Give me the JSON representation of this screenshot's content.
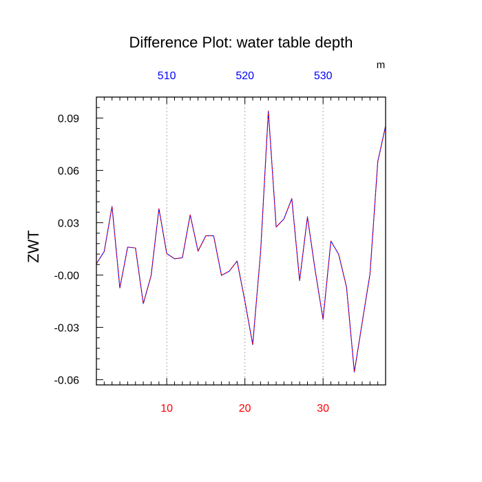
{
  "chart_data": {
    "type": "line",
    "title": "Difference Plot: water table depth",
    "ylabel": "ZWT",
    "top_axis_unit": "m",
    "xlim": [
      1,
      38
    ],
    "ylim": [
      -0.063,
      0.102
    ],
    "grid": "vertical-dotted",
    "x_ticks_bottom": [
      10,
      20,
      30
    ],
    "x_tick_labels_bottom": [
      "10",
      "20",
      "30"
    ],
    "x_ticks_top": [
      10,
      20,
      30
    ],
    "x_tick_labels_top": [
      "510",
      "520",
      "530"
    ],
    "y_ticks": [
      0.09,
      0.06,
      0.03,
      0.0,
      -0.03,
      -0.06
    ],
    "y_tick_labels": [
      "0.09",
      "0.06",
      "0.03",
      "-0.00",
      "-0.03",
      "-0.06"
    ],
    "series": [
      {
        "x": [
          1,
          2,
          3,
          4,
          5,
          6,
          7,
          8,
          9,
          10,
          11,
          12,
          13,
          14,
          15,
          16,
          17,
          18,
          19,
          20,
          21,
          22,
          23,
          24,
          25,
          26,
          27,
          28,
          29,
          30,
          31,
          32,
          33,
          34,
          35,
          36,
          37,
          38
        ],
        "values": [
          0.0065,
          0.0135,
          0.0393,
          -0.0074,
          0.016,
          0.0155,
          -0.0164,
          -0.0003,
          0.038,
          0.0123,
          0.0093,
          0.0099,
          0.0345,
          0.0137,
          0.0225,
          0.0225,
          -0.0002,
          0.0022,
          0.008,
          -0.015,
          -0.0399,
          0.0128,
          0.094,
          0.0275,
          0.0322,
          0.0438,
          -0.0032,
          0.0334,
          0.0023,
          -0.0254,
          0.0195,
          0.0118,
          -0.0069,
          -0.0556,
          -0.0274,
          0.0005,
          0.065,
          0.0855
        ]
      }
    ],
    "colors": {
      "line_primary": "#0000ff",
      "line_secondary": "#ff0000",
      "bottom_tick_labels": "#ff0000",
      "top_tick_labels": "#0000ff",
      "axes": "#000000",
      "grid": "#aaaaaa"
    }
  }
}
